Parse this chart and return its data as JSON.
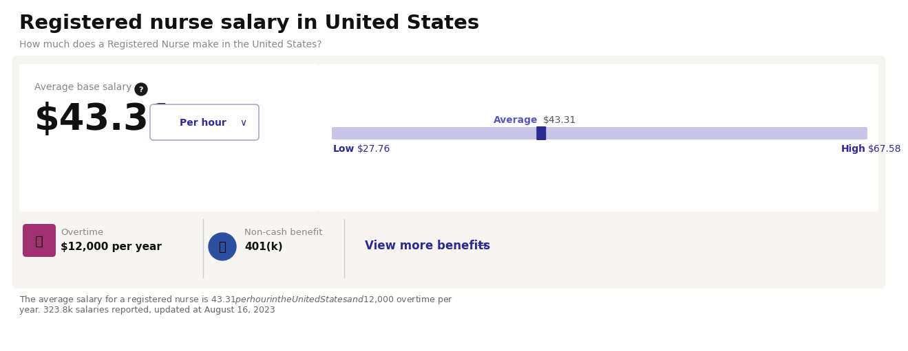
{
  "title": "Registered nurse salary in United States",
  "subtitle": "How much does a Registered Nurse make in the United States?",
  "average_label": "Average base salary",
  "salary": "$43.31",
  "period": "Per hour",
  "low_val": 27.76,
  "high_val": 67.58,
  "avg_val": 43.31,
  "overtime_label": "Overtime",
  "overtime_val": "$12,000 per year",
  "benefit_label": "Non-cash benefit",
  "benefit_val": "401(k)",
  "view_more": "View more benefits",
  "footer_line1": "The average salary for a registered nurse is $43.31 per hour in the United States and $12,000 overtime per",
  "footer_line2": "year. 323.8k salaries reported, updated at August 16, 2023",
  "bg_outer": "#f0eeea",
  "bg_card": "#f7f5f2",
  "white": "#ffffff",
  "bar_color": "#c8c5e8",
  "marker_color": "#2d2b8f",
  "title_color": "#111111",
  "subtitle_color": "#888888",
  "avg_word_color": "#5b57c2",
  "avg_num_color": "#555555",
  "salary_color": "#111111",
  "low_high_bold_color": "#2d2b8f",
  "low_high_num_color": "#2d2b8f",
  "label_color": "#888888",
  "footer_color": "#666666",
  "btn_border": "#aaaacc",
  "btn_text": "#2d2b8f",
  "view_more_color": "#2d2b8f",
  "overtime_icon_color": "#a03070",
  "benefit_icon_color": "#2d4fa0",
  "divider_color": "#cccccc"
}
